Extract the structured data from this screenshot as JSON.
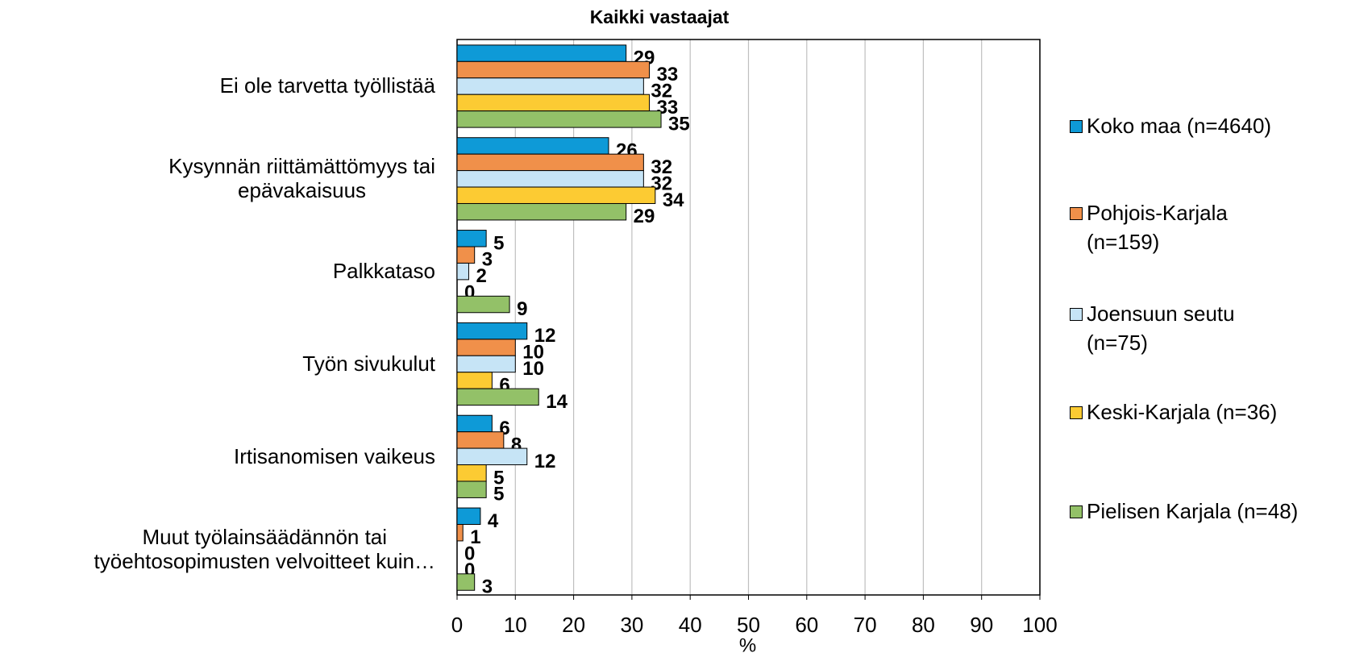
{
  "chart_data": {
    "type": "bar",
    "orientation": "horizontal",
    "title": "Kaikki vastaajat",
    "x_label": "%",
    "categories": [
      "Ei ole tarvetta työllistää",
      "Kysynnän riittämättömyys tai\nepävakaisuus",
      "Palkkataso",
      "Työn sivukulut",
      "Irtisanomisen vaikeus",
      "Muut työlainsäädännön tai\ntyöehtosopimusten velvoitteet kuin…"
    ],
    "series": [
      {
        "name": "Koko maa (n=4640)",
        "color": "#0e9ad7",
        "values": [
          29,
          26,
          5,
          12,
          6,
          4
        ]
      },
      {
        "name": "Pohjois-Karjala\n(n=159)",
        "color": "#f0904a",
        "values": [
          33,
          32,
          3,
          10,
          8,
          1
        ]
      },
      {
        "name": "Joensuun seutu\n(n=75)",
        "color": "#c6e4f6",
        "values": [
          32,
          32,
          2,
          10,
          12,
          0
        ]
      },
      {
        "name": "Keski-Karjala (n=36)",
        "color": "#fccb33",
        "values": [
          33,
          34,
          0,
          6,
          5,
          0
        ]
      },
      {
        "name": "Pielisen Karjala (n=48)",
        "color": "#93c168",
        "values": [
          35,
          29,
          9,
          14,
          5,
          3
        ]
      }
    ],
    "xlim": [
      0,
      100
    ],
    "xticks": [
      0,
      10,
      20,
      30,
      40,
      50,
      60,
      70,
      80,
      90,
      100
    ],
    "grid": true,
    "legend": "right"
  }
}
